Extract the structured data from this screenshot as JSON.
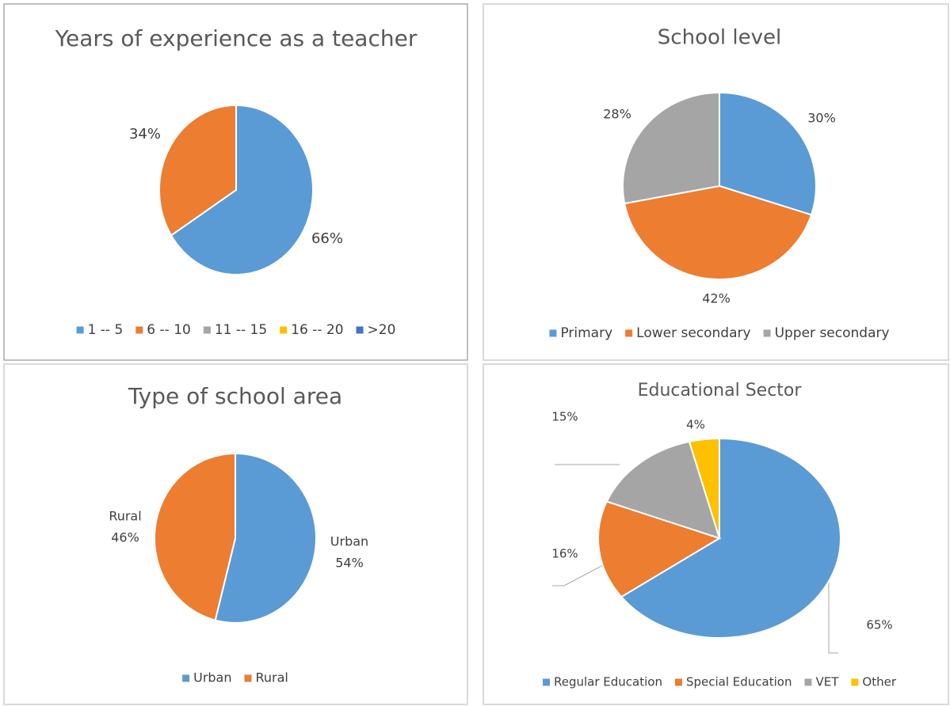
{
  "chart_data": [
    {
      "type": "pie",
      "title": "Years of experience as a teacher",
      "categories": [
        "1 -- 5",
        "6 -- 10",
        "11 -- 15",
        "16 -- 20",
        ">20"
      ],
      "values": [
        66,
        34,
        0,
        0,
        0
      ],
      "value_labels": [
        "66%",
        "34%",
        null,
        null,
        null
      ],
      "colors": [
        "#5b9bd5",
        "#ed7d31",
        "#a5a5a5",
        "#ffc000",
        "#4472c4"
      ],
      "legend": "bottom"
    },
    {
      "type": "pie",
      "title": "School level",
      "categories": [
        "Primary",
        "Lower secondary",
        "Upper secondary"
      ],
      "values": [
        30,
        42,
        28
      ],
      "value_labels": [
        "30%",
        "42%",
        "28%"
      ],
      "colors": [
        "#5b9bd5",
        "#ed7d31",
        "#a5a5a5"
      ],
      "legend": "bottom"
    },
    {
      "type": "pie",
      "title": "Type of school area",
      "categories": [
        "Urban",
        "Rural"
      ],
      "values": [
        54,
        46
      ],
      "value_labels": [
        "54%",
        "46%"
      ],
      "colors": [
        "#5b9bd5",
        "#ed7d31"
      ],
      "legend": "bottom"
    },
    {
      "type": "pie",
      "title": "Educational Sector",
      "categories": [
        "Regular Education",
        "Special Education",
        "VET",
        "Other"
      ],
      "values": [
        65,
        16,
        15,
        4
      ],
      "value_labels": [
        "65%",
        "16%",
        "15%",
        "4%"
      ],
      "colors": [
        "#5b9bd5",
        "#ed7d31",
        "#a5a5a5",
        "#ffc000"
      ],
      "legend": "bottom"
    }
  ]
}
